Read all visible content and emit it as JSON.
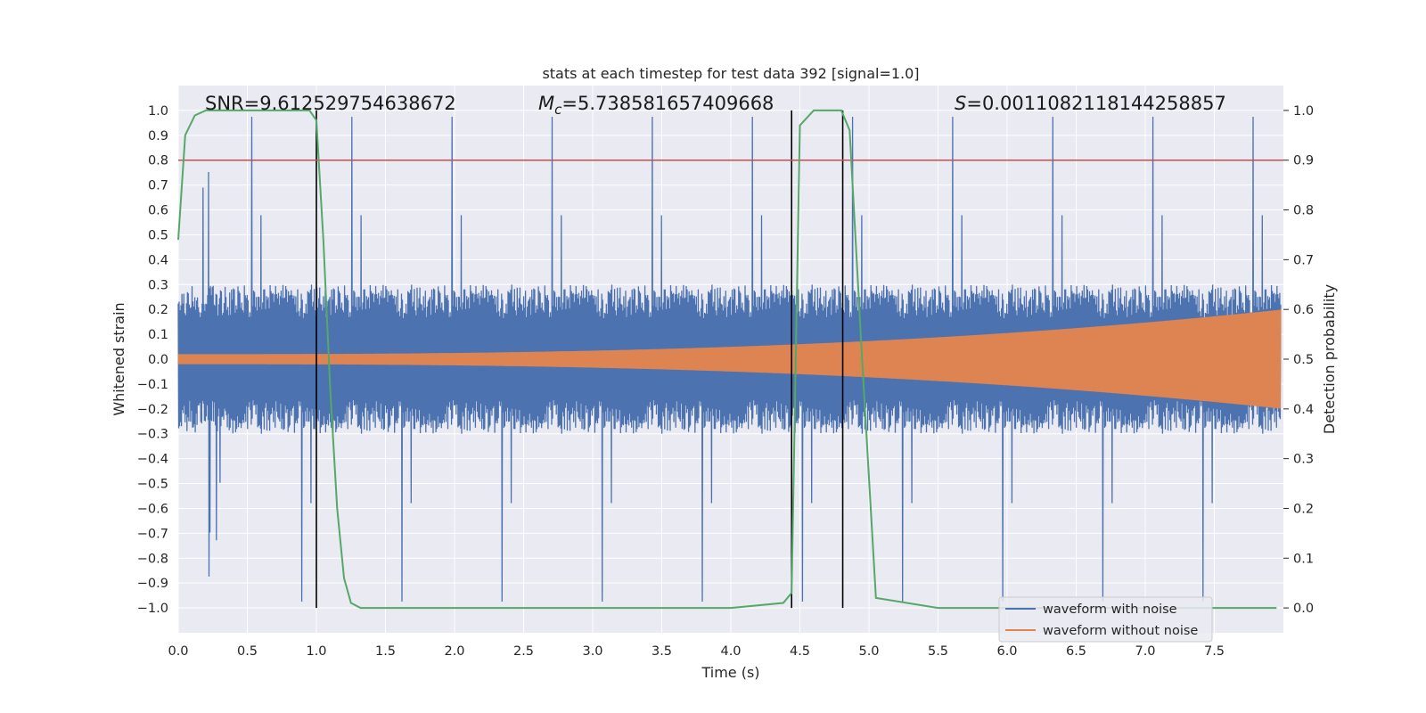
{
  "chart_data": {
    "type": "line",
    "title": "stats at each timestep for test data 392 [signal=1.0]",
    "xlabel": "Time (s)",
    "ylabel_left": "Whitened strain",
    "ylabel_right": "Detection probability",
    "xlim": [
      0.0,
      8.0
    ],
    "ylim_left": [
      -1.1,
      1.1
    ],
    "ylim_right": [
      -0.05,
      1.05
    ],
    "x_ticks": [
      "0.0",
      "0.5",
      "1.0",
      "1.5",
      "2.0",
      "2.5",
      "3.0",
      "3.5",
      "4.0",
      "4.5",
      "5.0",
      "5.5",
      "6.0",
      "6.5",
      "7.0",
      "7.5"
    ],
    "y_left_ticks": [
      "1.0",
      "0.9",
      "0.8",
      "0.7",
      "0.6",
      "0.5",
      "0.4",
      "0.3",
      "0.2",
      "0.1",
      "0.0",
      "−0.1",
      "−0.2",
      "−0.3",
      "−0.4",
      "−0.5",
      "−0.6",
      "−0.7",
      "−0.8",
      "−0.9",
      "−1.0"
    ],
    "y_right_ticks": [
      "1.0",
      "0.9",
      "0.8",
      "0.7",
      "0.6",
      "0.5",
      "0.4",
      "0.3",
      "0.2",
      "0.1",
      "0.0"
    ],
    "grid": true,
    "annotations": {
      "snr": "SNR=9.612529754638672",
      "mc_symbol": "M",
      "mc_sub": "c",
      "mc_value": "=5.738581657409668",
      "s_symbol": "S",
      "s_value": "=0.0011082118144258857"
    },
    "threshold_probability": 0.9,
    "detection_markers_s": [
      1.0,
      4.44,
      4.81
    ],
    "series": [
      {
        "name": "waveform with noise",
        "color": "#4c72b0",
        "description": "whitened strain with noise, band approx ±0.3 with spikes up to ±1.0",
        "noise_band": 0.3,
        "max_abs": 1.0
      },
      {
        "name": "waveform without noise",
        "color": "#dd8452",
        "description": "chirp signal growing from amplitude ~0.02 at t=0 to ~0.2 at t=8",
        "start_amplitude": 0.02,
        "end_amplitude": 0.2
      },
      {
        "name": "detection probability",
        "color": "#55a868",
        "axis": "right",
        "x": [
          0.0,
          0.05,
          0.12,
          0.2,
          0.3,
          0.5,
          0.7,
          0.95,
          1.0,
          1.05,
          1.1,
          1.15,
          1.2,
          1.25,
          1.32,
          1.5,
          2.0,
          3.0,
          4.0,
          4.38,
          4.44,
          4.5,
          4.6,
          4.8,
          4.86,
          4.95,
          5.05,
          5.5,
          6.0,
          7.0,
          7.95
        ],
        "values": [
          0.74,
          0.95,
          0.99,
          1.0,
          1.0,
          1.0,
          1.0,
          1.0,
          0.98,
          0.74,
          0.44,
          0.2,
          0.06,
          0.01,
          0.0,
          0.0,
          0.0,
          0.0,
          0.0,
          0.01,
          0.03,
          0.97,
          1.0,
          1.0,
          0.96,
          0.5,
          0.02,
          0.0,
          0.0,
          0.0,
          0.0
        ]
      }
    ],
    "legend": {
      "position": "lower-right",
      "entries": [
        "waveform with noise",
        "waveform without noise"
      ]
    }
  },
  "colors": {
    "axes_bg": "#eaeaf2",
    "grid": "#ffffff",
    "threshold": "#c44e52",
    "marker": "#000000"
  }
}
